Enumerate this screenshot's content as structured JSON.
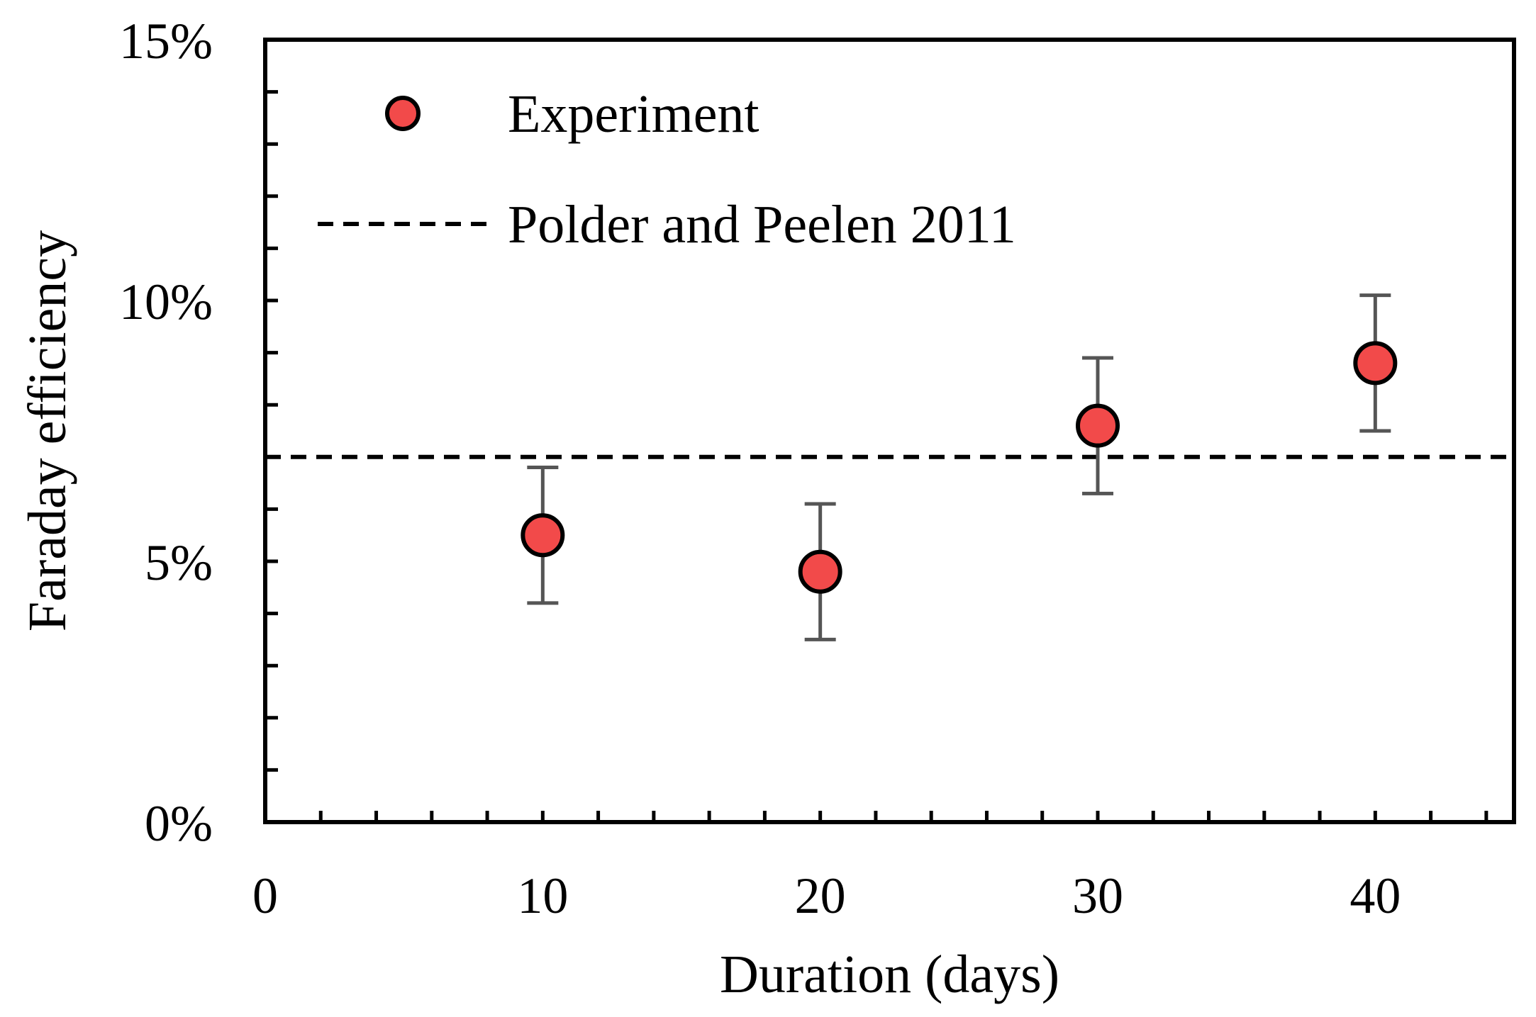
{
  "chart_data": {
    "type": "scatter",
    "title": "",
    "xlabel": "Duration (days)",
    "ylabel": "Faraday efficiency",
    "xlim": [
      0,
      45
    ],
    "ylim": [
      0,
      0.15
    ],
    "x_ticks": [
      0,
      10,
      20,
      30,
      40
    ],
    "x_tick_labels": [
      "0",
      "10",
      "20",
      "30",
      "40"
    ],
    "x_minor_step": 2,
    "y_ticks": [
      0,
      0.05,
      0.1,
      0.15
    ],
    "y_tick_labels": [
      "0%",
      "5%",
      "10%",
      "15%"
    ],
    "y_minor_step": 0.01,
    "grid": false,
    "legend_position": "top-left",
    "series": [
      {
        "name": "Experiment",
        "kind": "points_with_error_bars",
        "marker_color": "#f24a4a",
        "error_color": "#555555",
        "x": [
          10,
          20,
          30,
          40
        ],
        "y": [
          0.055,
          0.048,
          0.076,
          0.088
        ],
        "y_err_low": [
          0.042,
          0.035,
          0.063,
          0.075
        ],
        "y_err_high": [
          0.068,
          0.061,
          0.089,
          0.101
        ]
      },
      {
        "name": "Polder and Peelen 2011",
        "kind": "reference_line",
        "style": "dashed",
        "color": "#000000",
        "y": 0.07
      }
    ]
  }
}
